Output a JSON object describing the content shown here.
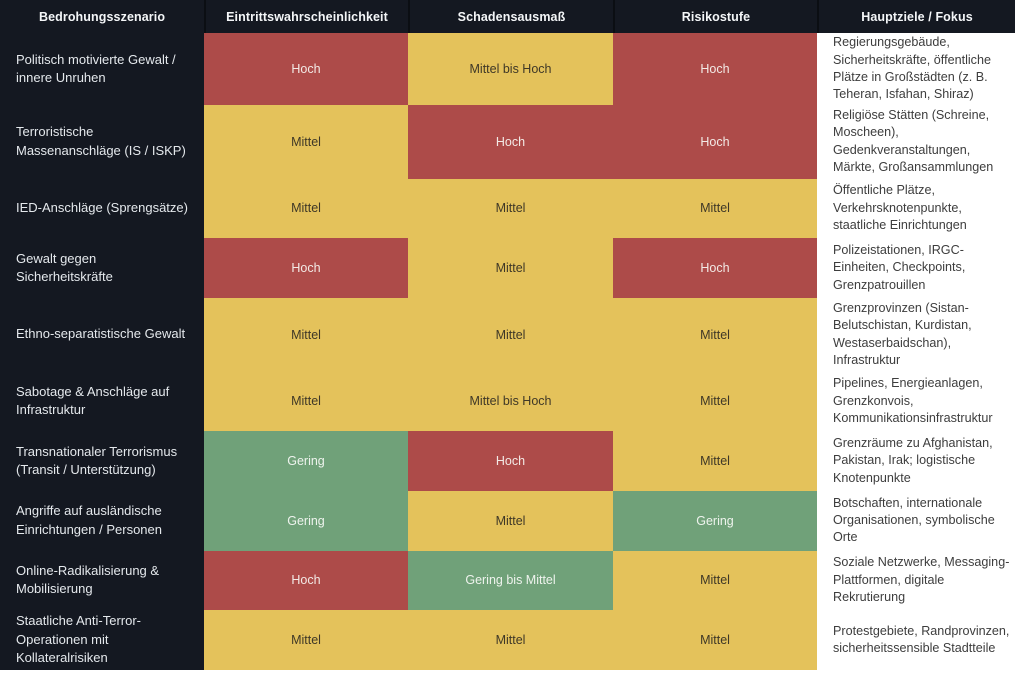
{
  "table": {
    "columns": [
      {
        "label": "Bedrohungsszenario"
      },
      {
        "label": "Eintrittswahrscheinlichkeit"
      },
      {
        "label": "Schadensausmaß"
      },
      {
        "label": "Risikostufe"
      },
      {
        "label": "Hauptziele / Fokus"
      }
    ],
    "levels": {
      "high": {
        "color": "#ad4b49",
        "text_color": "#f3eae6"
      },
      "medium": {
        "color": "#e4c25b",
        "text_color": "#3f3827"
      },
      "low": {
        "color": "#70a179",
        "text_color": "#eef3ed"
      }
    },
    "theme": {
      "header_background": "#141821",
      "scenario_background": "#141821",
      "targets_background": "#ffffff"
    },
    "rows": [
      {
        "scenario": "Politisch motivierte Gewalt / innere Unruhen",
        "probability": {
          "label": "Hoch",
          "level": "high"
        },
        "damage": {
          "label": "Mittel bis Hoch",
          "level": "medium"
        },
        "risk": {
          "label": "Hoch",
          "level": "high"
        },
        "targets": "Regierungsgebäude, Sicherheitskräfte, öffentliche Plätze in Großstädten (z. B. Teheran, Isfahan, Shiraz)"
      },
      {
        "scenario": "Terroristische Massenanschläge (IS / ISKP)",
        "probability": {
          "label": "Mittel",
          "level": "medium"
        },
        "damage": {
          "label": "Hoch",
          "level": "high"
        },
        "risk": {
          "label": "Hoch",
          "level": "high"
        },
        "targets": "Religiöse Stätten (Schreine, Moscheen), Gedenkveranstaltungen, Märkte, Großansammlungen"
      },
      {
        "scenario": "IED-Anschläge (Sprengsätze)",
        "probability": {
          "label": "Mittel",
          "level": "medium"
        },
        "damage": {
          "label": "Mittel",
          "level": "medium"
        },
        "risk": {
          "label": "Mittel",
          "level": "medium"
        },
        "targets": "Öffentliche Plätze, Verkehrsknotenpunkte, staatliche Einrichtungen"
      },
      {
        "scenario": "Gewalt gegen Sicherheitskräfte",
        "probability": {
          "label": "Hoch",
          "level": "high"
        },
        "damage": {
          "label": "Mittel",
          "level": "medium"
        },
        "risk": {
          "label": "Hoch",
          "level": "high"
        },
        "targets": "Polizeistationen, IRGC-Einheiten, Checkpoints, Grenzpatrouillen"
      },
      {
        "scenario": "Ethno-separatistische Gewalt",
        "probability": {
          "label": "Mittel",
          "level": "medium"
        },
        "damage": {
          "label": "Mittel",
          "level": "medium"
        },
        "risk": {
          "label": "Mittel",
          "level": "medium"
        },
        "targets": "Grenzprovinzen (Sistan-Belutschistan, Kurdistan, Westaserbaidschan), Infrastruktur"
      },
      {
        "scenario": "Sabotage & Anschläge auf Infrastruktur",
        "probability": {
          "label": "Mittel",
          "level": "medium"
        },
        "damage": {
          "label": "Mittel bis Hoch",
          "level": "medium"
        },
        "risk": {
          "label": "Mittel",
          "level": "medium"
        },
        "targets": "Pipelines, Energieanlagen, Grenzkonvois, Kommunikationsinfrastruktur"
      },
      {
        "scenario": "Transnationaler Terrorismus (Transit / Unterstützung)",
        "probability": {
          "label": "Gering",
          "level": "low"
        },
        "damage": {
          "label": "Hoch",
          "level": "high"
        },
        "risk": {
          "label": "Mittel",
          "level": "medium"
        },
        "targets": "Grenzräume zu Afghanistan, Pakistan, Irak; logistische Knotenpunkte"
      },
      {
        "scenario": "Angriffe auf ausländische Einrichtungen / Personen",
        "probability": {
          "label": "Gering",
          "level": "low"
        },
        "damage": {
          "label": "Mittel",
          "level": "medium"
        },
        "risk": {
          "label": "Gering",
          "level": "low"
        },
        "targets": "Botschaften, internationale Organisationen, symbolische Orte"
      },
      {
        "scenario": "Online-Radikalisierung & Mobilisierung",
        "probability": {
          "label": "Hoch",
          "level": "high"
        },
        "damage": {
          "label": "Gering bis Mittel",
          "level": "low"
        },
        "risk": {
          "label": "Mittel",
          "level": "medium"
        },
        "targets": "Soziale Netzwerke, Messaging-Plattformen, digitale Rekrutierung"
      },
      {
        "scenario": "Staatliche Anti-Terror-Operationen mit Kollateralrisiken",
        "probability": {
          "label": "Mittel",
          "level": "medium"
        },
        "damage": {
          "label": "Mittel",
          "level": "medium"
        },
        "risk": {
          "label": "Mittel",
          "level": "medium"
        },
        "targets": "Protestgebiete, Randprovinzen, sicherheitssensible Stadtteile"
      }
    ]
  }
}
